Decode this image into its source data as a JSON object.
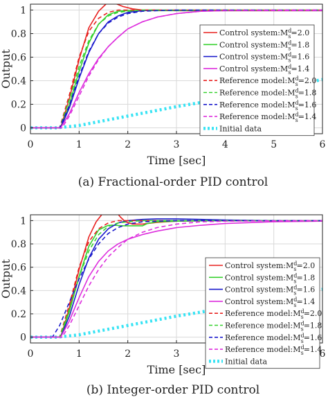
{
  "colors": {
    "red": "#e8201f",
    "green": "#35d12e",
    "blue": "#1a1acc",
    "magenta": "#dd2ddd",
    "cyan": "#38e3f4",
    "axis": "#222222",
    "grid": "#d9d9d9"
  },
  "chart_data": [
    {
      "type": "line",
      "caption": "(a) Fractional-order PID control",
      "xlabel": "Time [sec]",
      "ylabel": "Output",
      "xlim": [
        0,
        6
      ],
      "ylim": [
        -0.05,
        1.05
      ],
      "xticks": [
        "0",
        "1",
        "2",
        "3",
        "4",
        "5",
        "6"
      ],
      "yticks": [
        "0",
        "0.2",
        "0.4",
        "0.6",
        "0.8",
        "1"
      ],
      "grid": true,
      "legend_position": "right",
      "series": [
        {
          "name": "Control system:M^d_s=2.0",
          "color": "#e8201f",
          "dash": "solid",
          "x": [
            0,
            0.62,
            0.8,
            1.0,
            1.2,
            1.4,
            1.55,
            1.65,
            1.75,
            1.9,
            2.1,
            2.3,
            2.6,
            3.0,
            3.5,
            4,
            5,
            6
          ],
          "y": [
            0,
            0,
            0.25,
            0.58,
            0.85,
            0.99,
            1.05,
            1.06,
            1.055,
            1.03,
            1.01,
            1.0,
            1.0,
            0.995,
            0.995,
            0.995,
            0.995,
            0.995
          ]
        },
        {
          "name": "Control system:M^d_s=1.8",
          "color": "#35d12e",
          "dash": "solid",
          "x": [
            0,
            0.62,
            0.8,
            1.0,
            1.2,
            1.4,
            1.6,
            1.8,
            2.0,
            2.3,
            2.6,
            3.0,
            3.5,
            4,
            5,
            6
          ],
          "y": [
            0,
            0,
            0.2,
            0.48,
            0.72,
            0.88,
            0.96,
            0.99,
            0.995,
            0.995,
            0.995,
            0.995,
            0.995,
            0.995,
            0.995,
            0.995
          ]
        },
        {
          "name": "Control system:M^d_s=1.6",
          "color": "#1a1acc",
          "dash": "solid",
          "x": [
            0,
            0.62,
            0.8,
            1.0,
            1.2,
            1.4,
            1.6,
            1.8,
            2.0,
            2.3,
            2.6,
            3.0,
            3.5,
            4,
            5,
            6
          ],
          "y": [
            0,
            0,
            0.17,
            0.42,
            0.64,
            0.8,
            0.9,
            0.95,
            0.98,
            0.995,
            0.998,
            0.998,
            0.998,
            0.998,
            0.998,
            0.998
          ]
        },
        {
          "name": "Control system:M^d_s=1.4",
          "color": "#dd2ddd",
          "dash": "solid",
          "x": [
            0,
            0.62,
            0.8,
            1.0,
            1.2,
            1.4,
            1.6,
            1.8,
            2.0,
            2.3,
            2.6,
            3.0,
            3.5,
            4,
            5,
            6
          ],
          "y": [
            0,
            0,
            0.12,
            0.3,
            0.46,
            0.59,
            0.69,
            0.77,
            0.84,
            0.9,
            0.94,
            0.97,
            0.99,
            0.995,
            0.995,
            0.995
          ]
        },
        {
          "name": "Reference model:M^d_s=2.0",
          "color": "#e8201f",
          "dash": "dash",
          "x": [
            0,
            0.6,
            0.8,
            1.0,
            1.2,
            1.4,
            1.6,
            1.8,
            2.0,
            2.3,
            2.6,
            3.0,
            3.5,
            4,
            5,
            6
          ],
          "y": [
            0,
            0,
            0.28,
            0.6,
            0.82,
            0.93,
            0.98,
            1.0,
            1.0,
            1.0,
            1.0,
            1.0,
            1.0,
            1.0,
            1.0,
            1.0
          ]
        },
        {
          "name": "Reference model:M^d_s=1.8",
          "color": "#35d12e",
          "dash": "dash",
          "x": [
            0,
            0.6,
            0.8,
            1.0,
            1.2,
            1.4,
            1.6,
            1.8,
            2.0,
            2.3,
            2.6,
            3.0,
            3.5,
            4,
            5,
            6
          ],
          "y": [
            0,
            0,
            0.24,
            0.52,
            0.74,
            0.88,
            0.95,
            0.98,
            0.99,
            1.0,
            1.0,
            1.0,
            1.0,
            1.0,
            1.0,
            1.0
          ]
        },
        {
          "name": "Reference model:M^d_s=1.6",
          "color": "#1a1acc",
          "dash": "dash",
          "x": [
            0,
            0.6,
            0.8,
            1.0,
            1.2,
            1.4,
            1.6,
            1.8,
            2.0,
            2.3,
            2.6,
            3.0,
            3.5,
            4,
            5,
            6
          ],
          "y": [
            0,
            0,
            0.19,
            0.44,
            0.65,
            0.8,
            0.89,
            0.94,
            0.97,
            0.99,
            0.995,
            1.0,
            1.0,
            1.0,
            1.0,
            1.0
          ]
        },
        {
          "name": "Reference model:M^d_s=1.4",
          "color": "#dd2ddd",
          "dash": "dash",
          "x": [
            0,
            0.65,
            0.8,
            1.0,
            1.2,
            1.4,
            1.6,
            1.8,
            2.0,
            2.3,
            2.6,
            3.0,
            3.5,
            4,
            5,
            6
          ],
          "y": [
            0,
            0,
            0.1,
            0.27,
            0.44,
            0.58,
            0.69,
            0.77,
            0.84,
            0.9,
            0.94,
            0.97,
            0.99,
            0.995,
            0.998,
            1.0
          ]
        },
        {
          "name": "Initial data",
          "color": "#38e3f4",
          "dash": "dot",
          "x": [
            0,
            0.55,
            1,
            2,
            3,
            4,
            5,
            6
          ],
          "y": [
            0,
            0,
            0.02,
            0.1,
            0.18,
            0.25,
            0.33,
            0.41
          ]
        }
      ]
    },
    {
      "type": "line",
      "caption": "(b) Integer-order PID control",
      "xlabel": "Time [sec]",
      "ylabel": "Output",
      "xlim": [
        0,
        6
      ],
      "ylim": [
        -0.05,
        1.05
      ],
      "xticks": [
        "0",
        "1",
        "2",
        "3",
        "4",
        "5",
        "6"
      ],
      "yticks": [
        "0",
        "0.2",
        "0.4",
        "0.6",
        "0.8",
        "1"
      ],
      "grid": true,
      "legend_position": "right",
      "series": [
        {
          "name": "Control system:M^d_s=2.0",
          "color": "#e8201f",
          "dash": "solid",
          "x": [
            0,
            0.62,
            0.8,
            1.0,
            1.2,
            1.35,
            1.5,
            1.62,
            1.75,
            1.85,
            1.95,
            2.1,
            2.3,
            2.6,
            3.0,
            3.5,
            4,
            5,
            6
          ],
          "y": [
            0,
            0,
            0.25,
            0.58,
            0.86,
            0.99,
            1.07,
            1.09,
            1.08,
            1.03,
            0.99,
            0.97,
            0.97,
            0.985,
            0.995,
            0.998,
            0.998,
            0.998,
            0.998
          ]
        },
        {
          "name": "Control system:M^d_s=1.8",
          "color": "#35d12e",
          "dash": "solid",
          "x": [
            0,
            0.62,
            0.8,
            1.0,
            1.2,
            1.4,
            1.6,
            1.75,
            1.9,
            2.1,
            2.3,
            2.4,
            2.6,
            3.0,
            3.5,
            4,
            5,
            6
          ],
          "y": [
            0,
            0,
            0.22,
            0.52,
            0.78,
            0.92,
            0.96,
            0.96,
            0.955,
            0.955,
            0.955,
            0.975,
            0.99,
            0.995,
            0.998,
            0.998,
            0.998,
            0.998
          ]
        },
        {
          "name": "Control system:M^d_s=1.6",
          "color": "#1a1acc",
          "dash": "solid",
          "x": [
            0,
            0.62,
            0.8,
            1.0,
            1.2,
            1.4,
            1.6,
            1.8,
            2.0,
            2.3,
            2.6,
            3.0,
            3.5,
            4,
            5,
            6
          ],
          "y": [
            0,
            0,
            0.18,
            0.45,
            0.68,
            0.84,
            0.93,
            0.98,
            1.0,
            1.01,
            1.015,
            1.015,
            1.01,
            1.005,
            1.0,
            1.0
          ]
        },
        {
          "name": "Control system:M^d_s=1.4",
          "color": "#dd2ddd",
          "dash": "solid",
          "x": [
            0,
            0.62,
            0.8,
            1.0,
            1.2,
            1.4,
            1.6,
            1.8,
            2.0,
            2.3,
            2.6,
            3.0,
            3.5,
            4,
            5,
            6
          ],
          "y": [
            0,
            0,
            0.14,
            0.34,
            0.52,
            0.65,
            0.74,
            0.8,
            0.84,
            0.88,
            0.91,
            0.94,
            0.96,
            0.975,
            0.99,
            0.995
          ]
        },
        {
          "name": "Reference model:M^d_s=2.0",
          "color": "#e8201f",
          "dash": "dash",
          "x": [
            0,
            0.6,
            0.8,
            1.0,
            1.2,
            1.4,
            1.6,
            1.8,
            2.0,
            2.3,
            2.6,
            3.0,
            3.5,
            4,
            5,
            6
          ],
          "y": [
            0,
            0,
            0.28,
            0.6,
            0.82,
            0.93,
            0.98,
            1.0,
            1.0,
            1.0,
            1.0,
            1.0,
            1.0,
            1.0,
            1.0,
            1.0
          ]
        },
        {
          "name": "Reference model:M^d_s=1.8",
          "color": "#35d12e",
          "dash": "dash",
          "x": [
            0,
            0.6,
            0.8,
            1.0,
            1.2,
            1.4,
            1.6,
            1.8,
            2.0,
            2.3,
            2.6,
            3.0,
            3.5,
            4,
            5,
            6
          ],
          "y": [
            0,
            0,
            0.24,
            0.52,
            0.74,
            0.88,
            0.95,
            0.98,
            0.99,
            1.0,
            1.0,
            1.0,
            1.0,
            1.0,
            1.0,
            1.0
          ]
        },
        {
          "name": "Reference model:M^d_s=1.6",
          "color": "#1a1acc",
          "dash": "dash",
          "x": [
            0,
            0.45,
            0.6,
            0.8,
            1.0,
            1.2,
            1.4,
            1.6,
            1.8,
            2.0,
            2.3,
            2.6,
            3.0,
            3.5,
            4,
            5,
            6
          ],
          "y": [
            0,
            0,
            0.1,
            0.3,
            0.5,
            0.67,
            0.8,
            0.89,
            0.94,
            0.97,
            0.99,
            0.995,
            1.0,
            1.0,
            1.0,
            1.0,
            1.0
          ]
        },
        {
          "name": "Reference model:M^d_s=1.4",
          "color": "#dd2ddd",
          "dash": "dash",
          "x": [
            0,
            0.65,
            0.8,
            1.0,
            1.2,
            1.4,
            1.6,
            1.8,
            2.0,
            2.3,
            2.6,
            3.0,
            3.5,
            4,
            5,
            6
          ],
          "y": [
            0,
            0,
            0.1,
            0.27,
            0.44,
            0.58,
            0.69,
            0.77,
            0.84,
            0.9,
            0.94,
            0.97,
            0.99,
            0.995,
            0.998,
            1.0
          ]
        },
        {
          "name": "Initial data",
          "color": "#38e3f4",
          "dash": "dot",
          "x": [
            0,
            0.55,
            1,
            2,
            3,
            4,
            5,
            6
          ],
          "y": [
            0,
            0,
            0.02,
            0.1,
            0.18,
            0.25,
            0.33,
            0.41
          ]
        }
      ]
    }
  ]
}
